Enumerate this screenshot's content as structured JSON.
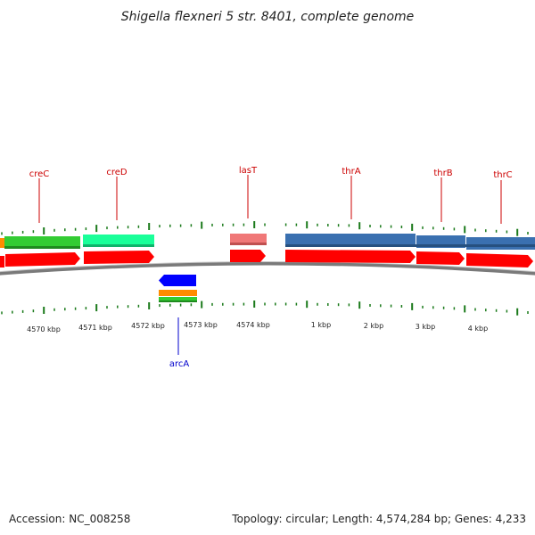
{
  "title": "Shigella flexneri 5 str. 8401, complete genome",
  "footer": {
    "accession": "Accession: NC_008258",
    "summary": "Topology: circular; Length: 4,574,284 bp; Genes: 4,233"
  },
  "colors": {
    "background": "#ffffff",
    "backbone": "#7a7a7a",
    "tick": "#1a7a1a",
    "label_red": "#cc0000",
    "label_blue": "#0000cc",
    "cds": "#ff0000",
    "crec": "#33cc33",
    "cred": "#1aff99",
    "last": "#f07878",
    "thr": "#3a70b0",
    "arca": "#0000ff",
    "orange": "#ff8c00",
    "green": "#33cc33"
  },
  "axis_labels": [
    "4570 kbp",
    "4571 kbp",
    "4572 kbp",
    "4573 kbp",
    "4574 kbp",
    "1 kbp",
    "2 kbp",
    "3 kbp",
    "4 kbp"
  ],
  "genes": [
    {
      "name": "creC",
      "color": "#cc0000"
    },
    {
      "name": "creD",
      "color": "#cc0000"
    },
    {
      "name": "lasT",
      "color": "#cc0000"
    },
    {
      "name": "thrA",
      "color": "#cc0000"
    },
    {
      "name": "thrB",
      "color": "#cc0000"
    },
    {
      "name": "thrC",
      "color": "#cc0000"
    },
    {
      "name": "arcA",
      "color": "#0000cc"
    }
  ]
}
